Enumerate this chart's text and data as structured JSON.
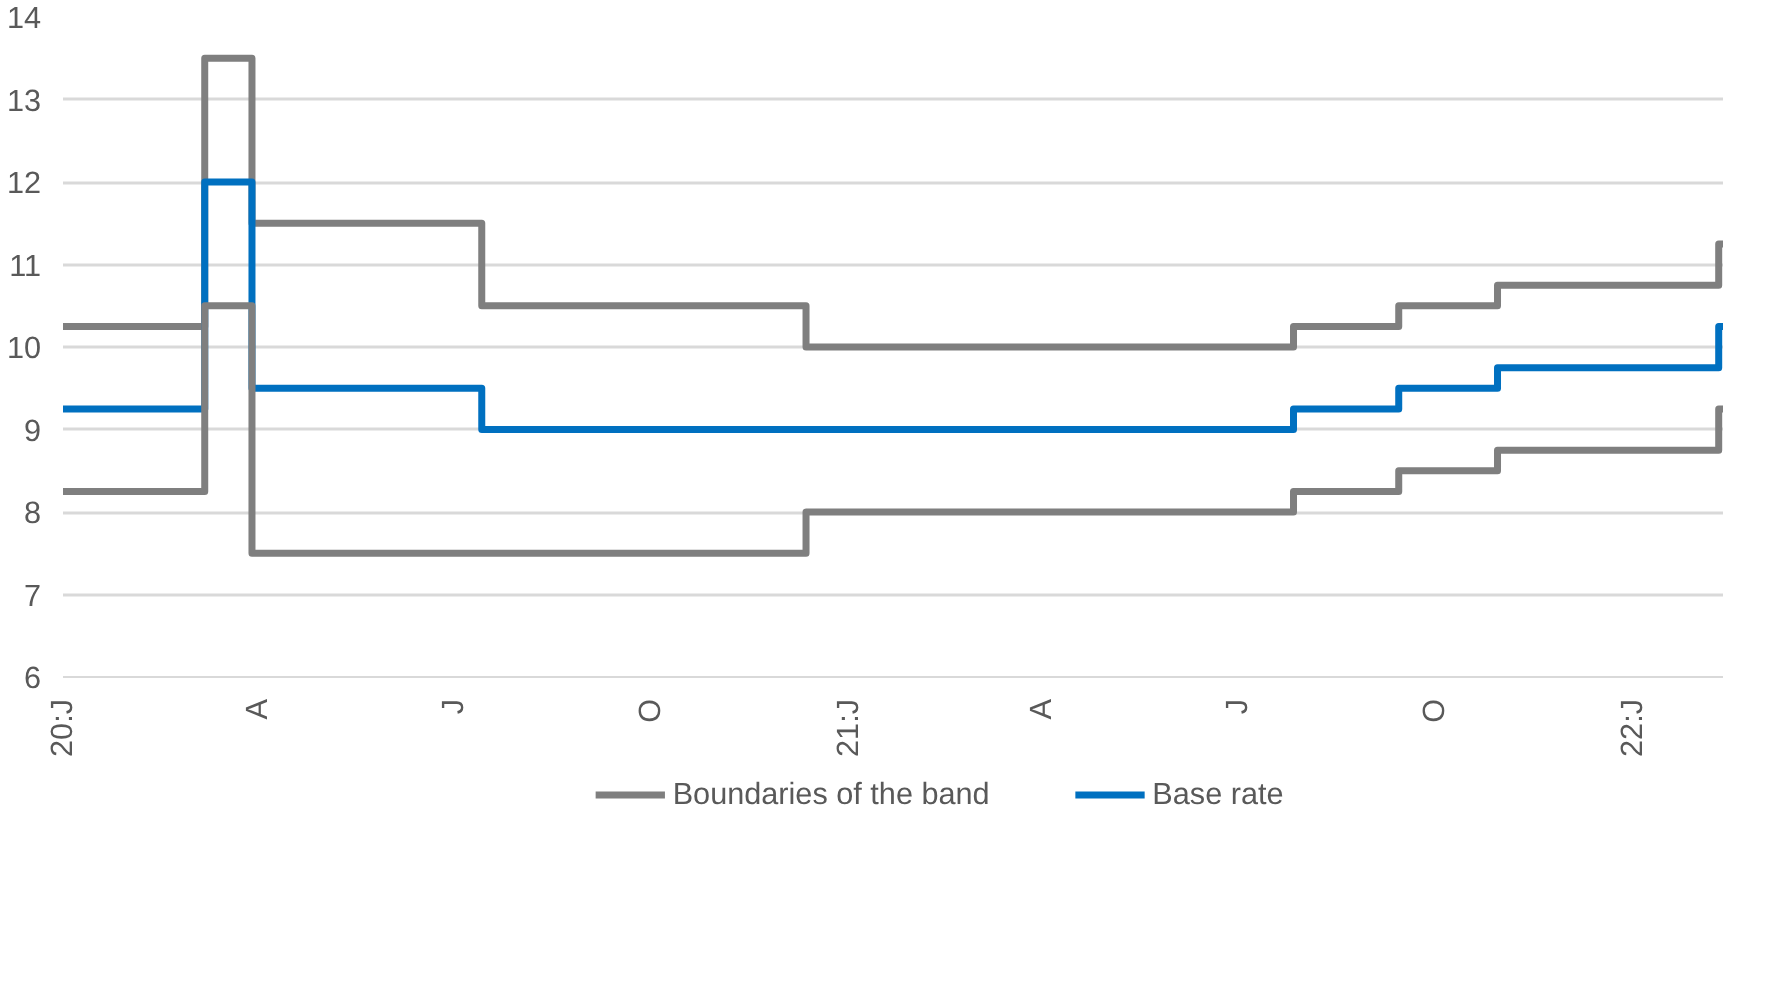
{
  "chart_data": {
    "type": "step",
    "x": [
      "2020-01-01",
      "2020-03-07",
      "2020-03-29",
      "2020-07-14",
      "2020-12-12",
      "2021-07-27",
      "2021-09-14",
      "2021-10-30",
      "2022-02-10",
      "2022-02-12"
    ],
    "series": [
      {
        "name": "Boundaries of the band",
        "color": "#7f7f7f",
        "values": [
          10.25,
          13.5,
          11.5,
          10.5,
          10,
          10.25,
          10.5,
          10.75,
          11.25,
          11.25
        ]
      },
      {
        "name": "Base rate",
        "color": "#0070c0",
        "values": [
          9.25,
          12,
          9.5,
          9,
          9,
          9.25,
          9.5,
          9.75,
          10.25,
          10.25
        ]
      },
      {
        "color": "#7f7f7f",
        "values": [
          8.25,
          10.5,
          7.5,
          7.5,
          8,
          8.25,
          8.5,
          8.75,
          9.25,
          9.25
        ]
      }
    ],
    "xlim": [
      "2020-01-01",
      "2022-02-12"
    ],
    "xticks": [
      {
        "value": "2020-01-01",
        "label": "20:J"
      },
      {
        "value": "2020-04-01",
        "label": "A"
      },
      {
        "value": "2020-07-01",
        "label": "J"
      },
      {
        "value": "2020-10-01",
        "label": "O"
      },
      {
        "value": "2021-01-01",
        "label": "21:J"
      },
      {
        "value": "2021-04-01",
        "label": "A"
      },
      {
        "value": "2021-07-01",
        "label": "J"
      },
      {
        "value": "2021-10-01",
        "label": "O"
      },
      {
        "value": "2022-01-01",
        "label": "22:J"
      }
    ],
    "ylim": [
      6,
      14
    ],
    "yticks": [
      6,
      7,
      8,
      9,
      10,
      11,
      12,
      13,
      14
    ],
    "grid": "y",
    "legend": "bottom"
  }
}
